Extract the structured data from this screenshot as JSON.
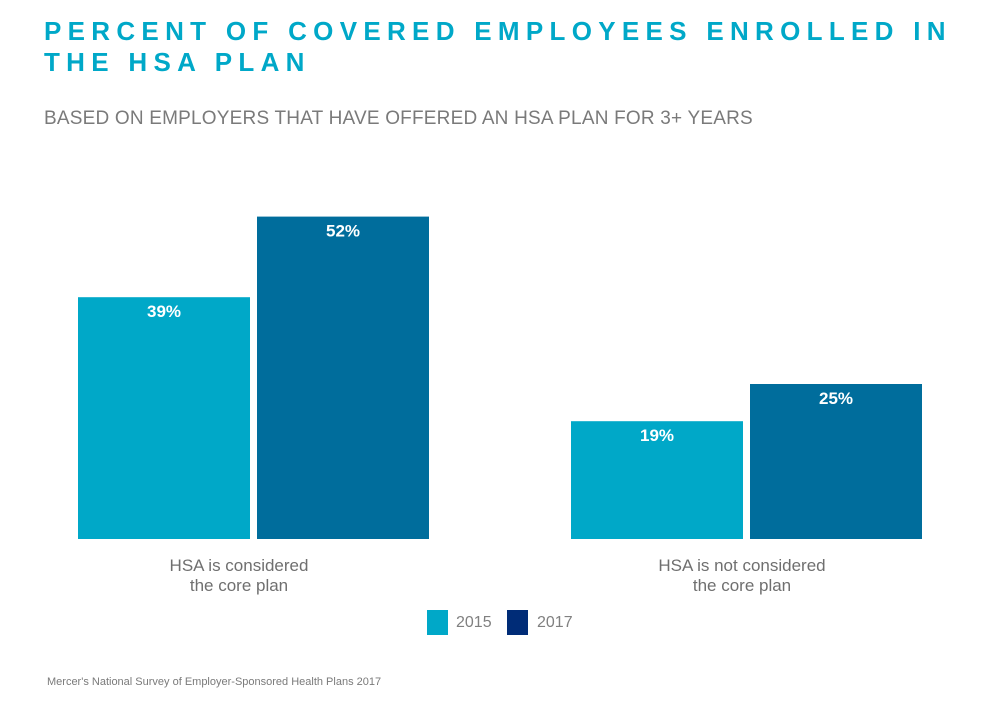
{
  "chart_data": {
    "type": "bar",
    "title": "PERCENT OF COVERED EMPLOYEES ENROLLED IN THE HSA PLAN",
    "subtitle": "BASED ON EMPLOYERS THAT HAVE OFFERED AN HSA PLAN FOR 3+ YEARS",
    "categories": [
      "HSA is considered the core plan",
      "HSA is not considered the core plan"
    ],
    "category_lines": [
      [
        "HSA is considered",
        "the core plan"
      ],
      [
        "HSA is not considered",
        "the core plan"
      ]
    ],
    "series": [
      {
        "name": "2015",
        "values": [
          39,
          19
        ],
        "labels": [
          "39%",
          "19%"
        ],
        "color": "#00A8C8"
      },
      {
        "name": "2017",
        "values": [
          52,
          25
        ],
        "labels": [
          "52%",
          "25%"
        ],
        "color": "#006D9C",
        "legend_color": "#002C77"
      }
    ],
    "unit": "%",
    "grid": false,
    "legend_placement": "bottom",
    "title_color": "#00A8C8",
    "source": "Mercer's National Survey of Employer-Sponsored Health Plans 2017"
  }
}
